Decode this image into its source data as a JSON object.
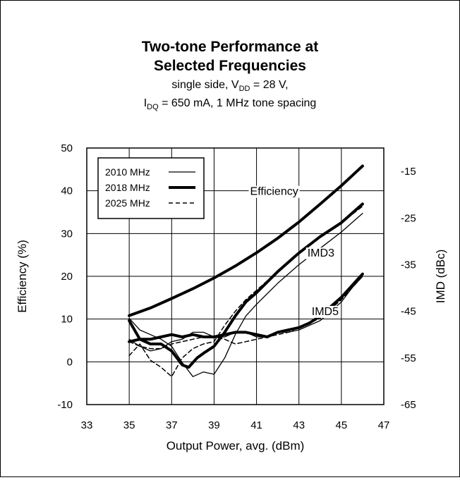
{
  "chart_data": {
    "type": "line",
    "title_line1": "Two-tone Performance at",
    "title_line2": "Selected Frequencies",
    "subtitle_line1": {
      "pre": "single side, V",
      "sub": "DD",
      "post": " = 28 V,"
    },
    "subtitle_line2": {
      "pre": "I",
      "sub": "DQ",
      "post": " = 650 mA, 1 MHz tone spacing"
    },
    "xlabel": "Output Power, avg. (dBm)",
    "ylabel_left": "Efficiency (%)",
    "ylabel_right": "IMD (dBc)",
    "xlim": [
      33,
      47
    ],
    "ylim_left": [
      -10,
      50
    ],
    "ylim_right": [
      -65,
      -10
    ],
    "x_ticks": [
      "33",
      "35",
      "37",
      "39",
      "41",
      "43",
      "45",
      "47"
    ],
    "y_left_ticks": [
      "-10",
      "0",
      "10",
      "20",
      "30",
      "40",
      "50"
    ],
    "y_right_ticks": [
      "-65",
      "-55",
      "-45",
      "-35",
      "-25",
      "-15"
    ],
    "grid": true,
    "legend_position": "top-left",
    "legend": [
      {
        "label": "2010 MHz",
        "style": "thin"
      },
      {
        "label": "2018 MHz",
        "style": "thick"
      },
      {
        "label": "2025 MHz",
        "style": "dashed"
      }
    ],
    "annotations": [
      "Efficiency",
      "IMD3",
      "IMD5"
    ],
    "series": [
      {
        "name": "2010 MHz",
        "group": "Efficiency",
        "axis": "left",
        "style": "thin",
        "x": [
          35,
          36,
          37,
          38,
          39,
          40,
          41,
          42,
          43,
          44,
          45,
          46
        ],
        "y": [
          10.6,
          12.4,
          14.6,
          16.9,
          19.4,
          22.2,
          25.3,
          28.7,
          32.5,
          36.7,
          41.0,
          45.6
        ]
      },
      {
        "name": "2018 MHz",
        "group": "Efficiency",
        "axis": "left",
        "style": "thick",
        "x": [
          35,
          36,
          37,
          38,
          39,
          40,
          41,
          42,
          43,
          44,
          45,
          46
        ],
        "y": [
          10.8,
          12.6,
          14.8,
          17.1,
          19.6,
          22.4,
          25.5,
          28.9,
          32.7,
          36.9,
          41.2,
          45.8
        ]
      },
      {
        "name": "2025 MHz",
        "group": "Efficiency",
        "axis": "left",
        "style": "dashed",
        "x": [
          35,
          36,
          37,
          38,
          39,
          40,
          41,
          42,
          43,
          44,
          45,
          46
        ],
        "y": [
          10.7,
          12.5,
          14.7,
          17.0,
          19.5,
          22.3,
          25.4,
          28.8,
          32.6,
          36.8,
          41.1,
          45.7
        ]
      },
      {
        "name": "2010 MHz",
        "group": "IMD3",
        "axis": "right",
        "style": "thin",
        "x": [
          35,
          35.5,
          36,
          36.5,
          37,
          37.5,
          38,
          38.5,
          39,
          39.5,
          40,
          40.5,
          41,
          42,
          43,
          44,
          45,
          46
        ],
        "y": [
          -46.5,
          -49,
          -50,
          -51,
          -52.5,
          -56,
          -59,
          -58,
          -58.5,
          -55,
          -50,
          -46,
          -43.5,
          -39,
          -35,
          -31.5,
          -28,
          -24
        ]
      },
      {
        "name": "2018 MHz",
        "group": "IMD3",
        "axis": "right",
        "style": "thick",
        "x": [
          35,
          35.5,
          36,
          36.5,
          37,
          37.5,
          37.8,
          38.2,
          38.5,
          39,
          39.5,
          40,
          40.5,
          41,
          42,
          43,
          44,
          45,
          46
        ],
        "y": [
          -47,
          -51,
          -52,
          -52,
          -53.5,
          -56.5,
          -57,
          -55,
          -54,
          -52.5,
          -49.5,
          -46,
          -43,
          -41,
          -36.5,
          -32.5,
          -29,
          -26,
          -22
        ]
      },
      {
        "name": "2025 MHz",
        "group": "IMD3",
        "axis": "right",
        "style": "dashed",
        "x": [
          35,
          35.5,
          36,
          36.5,
          37,
          37.5,
          38,
          38.5,
          39,
          39.5,
          40,
          40.5,
          41,
          42,
          43,
          44,
          45,
          46
        ],
        "y": [
          -54.5,
          -52,
          -55.5,
          -57,
          -59,
          -55,
          -53,
          -52,
          -51.5,
          -48,
          -45,
          -42.5,
          -40.5,
          -36.5,
          -32.5,
          -29,
          -26,
          -22.5
        ]
      },
      {
        "name": "2010 MHz",
        "group": "IMD5",
        "axis": "right",
        "style": "thin",
        "x": [
          35,
          35.5,
          36,
          36.5,
          37,
          37.5,
          38,
          38.5,
          39,
          39.5,
          40,
          40.5,
          41,
          41.5,
          42,
          42.5,
          43,
          43.5,
          44,
          44.5,
          45,
          45.5,
          46
        ],
        "y": [
          -51,
          -52.5,
          -53.5,
          -53,
          -51.5,
          -51,
          -49.5,
          -49.5,
          -50.5,
          -50.5,
          -49.5,
          -49.5,
          -50.5,
          -50.5,
          -49.5,
          -49.5,
          -49,
          -48,
          -47,
          -45,
          -43,
          -40,
          -37.5
        ]
      },
      {
        "name": "2018 MHz",
        "group": "IMD5",
        "axis": "right",
        "style": "thick",
        "x": [
          35,
          35.5,
          36,
          36.5,
          37,
          37.5,
          38,
          38.5,
          39,
          39.5,
          40,
          40.5,
          41,
          41.5,
          42,
          42.5,
          43,
          43.5,
          44,
          44.5,
          45,
          45.5,
          46
        ],
        "y": [
          -51.5,
          -51,
          -51,
          -50.5,
          -50,
          -50.5,
          -50,
          -50.5,
          -50.5,
          -50,
          -49.5,
          -49.5,
          -50,
          -50.5,
          -49.5,
          -49,
          -48.5,
          -47.5,
          -46,
          -44,
          -42,
          -39.5,
          -37
        ]
      },
      {
        "name": "2025 MHz",
        "group": "IMD5",
        "axis": "right",
        "style": "dashed",
        "x": [
          35,
          35.5,
          36,
          36.5,
          37,
          37.5,
          38,
          38.5,
          39,
          39.5,
          40,
          40.5,
          41,
          41.5,
          42,
          42.5,
          43,
          43.5,
          44,
          44.5,
          45,
          45.5,
          46
        ],
        "y": [
          -51.5,
          -52.5,
          -53,
          -53,
          -52,
          -51.5,
          -51,
          -50.5,
          -50.5,
          -51,
          -52,
          -51.5,
          -51,
          -50.5,
          -50,
          -49.5,
          -48.5,
          -47.5,
          -46.5,
          -44.5,
          -42.5,
          -40,
          -37.5
        ]
      }
    ]
  }
}
